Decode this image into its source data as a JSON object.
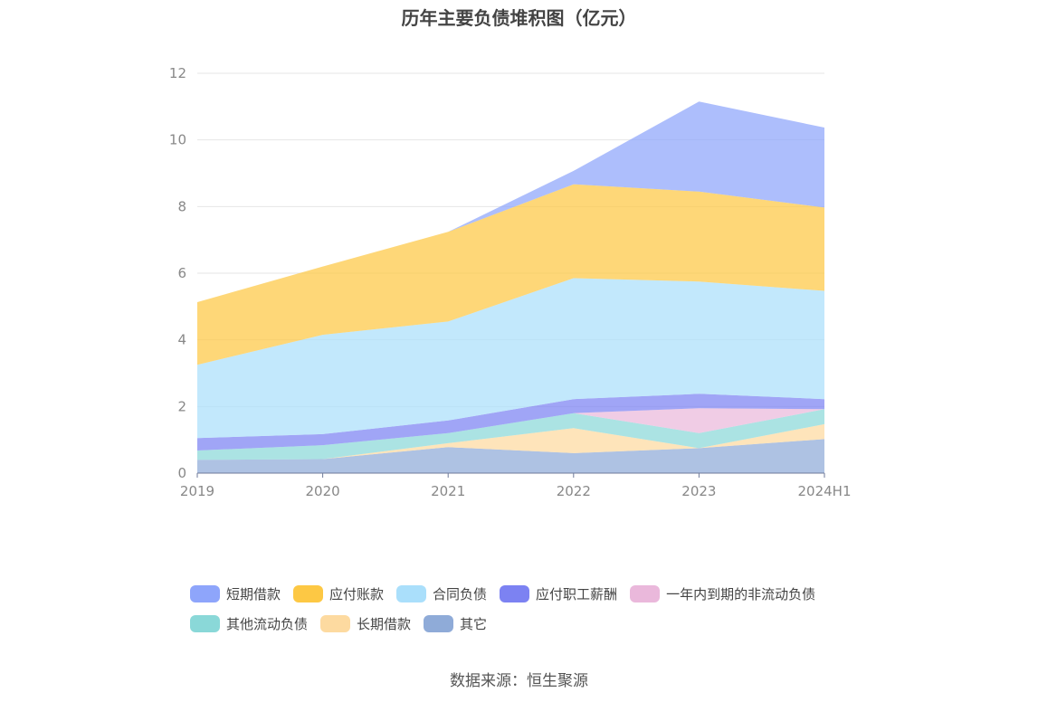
{
  "source_text": "数据来源：恒生聚源",
  "colors": {
    "短期借款": "#8ea5fb",
    "应付账款": "#fdc844",
    "合同负债": "#aadffb",
    "应付职工薪酬": "#7c82f2",
    "一年内到期的非流动负债": "#eab8db",
    "其他流动负债": "#8ad8d8",
    "长期借款": "#fddaa0",
    "其它": "#8fabd8"
  },
  "chart_data": {
    "type": "area",
    "stacked": true,
    "title": "历年主要负债堆积图（亿元）",
    "xlabel": "",
    "ylabel": "",
    "ylim": [
      0,
      12
    ],
    "yticks": [
      "0",
      "2",
      "4",
      "6",
      "8",
      "10",
      "12"
    ],
    "categories": [
      "2019",
      "2020",
      "2021",
      "2022",
      "2023",
      "2024H1"
    ],
    "grid": true,
    "legend_position": "bottom",
    "series": [
      {
        "name": "其它",
        "values": [
          0.4,
          0.42,
          0.78,
          0.6,
          0.75,
          1.02
        ]
      },
      {
        "name": "长期借款",
        "values": [
          0.0,
          0.0,
          0.12,
          0.75,
          0.0,
          0.45
        ]
      },
      {
        "name": "其他流动负债",
        "values": [
          0.28,
          0.42,
          0.3,
          0.45,
          0.45,
          0.45
        ]
      },
      {
        "name": "一年内到期的非流动负债",
        "values": [
          0.0,
          0.0,
          0.0,
          0.0,
          0.75,
          0.0
        ]
      },
      {
        "name": "应付职工薪酬",
        "values": [
          0.37,
          0.33,
          0.38,
          0.42,
          0.43,
          0.3
        ]
      },
      {
        "name": "合同负债",
        "values": [
          2.2,
          2.98,
          2.97,
          3.63,
          3.37,
          3.25
        ]
      },
      {
        "name": "应付账款",
        "values": [
          1.88,
          2.05,
          2.69,
          2.82,
          2.7,
          2.5
        ]
      },
      {
        "name": "短期借款",
        "values": [
          0.0,
          0.0,
          0.0,
          0.4,
          2.7,
          2.4
        ]
      }
    ]
  },
  "legend_rows": [
    [
      "短期借款",
      "应付账款",
      "合同负债",
      "应付职工薪酬",
      "一年内到期的非流动负债"
    ],
    [
      "其他流动负债",
      "长期借款",
      "其它"
    ]
  ]
}
